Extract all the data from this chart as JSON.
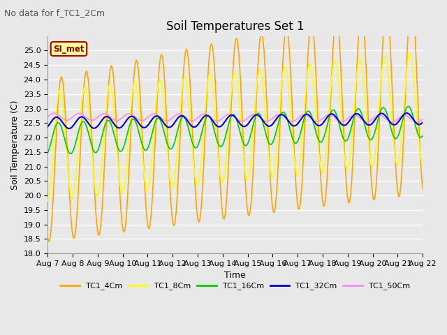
{
  "title": "Soil Temperatures Set 1",
  "subtitle": "No data for f_TC1_2Cm",
  "xlabel": "Time",
  "ylabel": "Soil Temperature (C)",
  "ylim": [
    18.0,
    25.5
  ],
  "yticks": [
    18.0,
    18.5,
    19.0,
    19.5,
    20.0,
    20.5,
    21.0,
    21.5,
    22.0,
    22.5,
    23.0,
    23.5,
    24.0,
    24.5,
    25.0
  ],
  "series": {
    "TC1_4Cm": {
      "color": "#FFA500",
      "linewidth": 1.2
    },
    "TC1_8Cm": {
      "color": "#FFFF00",
      "linewidth": 1.2
    },
    "TC1_16Cm": {
      "color": "#00CC00",
      "linewidth": 1.2
    },
    "TC1_32Cm": {
      "color": "#0000CC",
      "linewidth": 1.5
    },
    "TC1_50Cm": {
      "color": "#FF88FF",
      "linewidth": 1.2
    }
  },
  "legend_label": "SI_met",
  "legend_bg": "#FFFF99",
  "legend_border": "#AA0000",
  "background_color": "#E8E8E8",
  "grid_color": "#FFFFFF",
  "title_fontsize": 12,
  "subtitle_fontsize": 9,
  "axis_fontsize": 9,
  "tick_fontsize": 8
}
